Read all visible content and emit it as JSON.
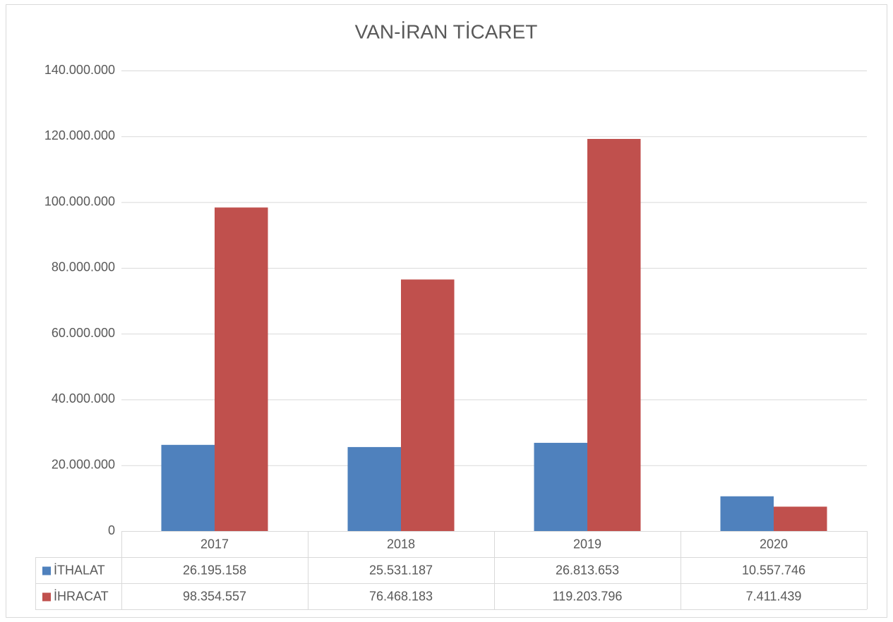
{
  "chart_data": {
    "type": "bar",
    "title": "VAN-İRAN TİCARET",
    "categories": [
      "2017",
      "2018",
      "2019",
      "2020"
    ],
    "series": [
      {
        "name": "İTHALAT",
        "color": "#4f81bd",
        "values": [
          26195158,
          25531187,
          26813653,
          10557746
        ],
        "value_labels": [
          "26.195.158",
          "25.531.187",
          "26.813.653",
          "10.557.746"
        ]
      },
      {
        "name": "İHRACAT",
        "color": "#c0504d",
        "values": [
          98354557,
          76468183,
          119203796,
          7411439
        ],
        "value_labels": [
          "98.354.557",
          "76.468.183",
          "119.203.796",
          "7.411.439"
        ]
      }
    ],
    "ylim": [
      0,
      140000000
    ],
    "yticks": [
      0,
      {
        "value": 20000000,
        "label": "20.000.000"
      },
      {
        "value": 40000000,
        "label": "40.000.000"
      },
      {
        "value": 60000000,
        "label": "60.000.000"
      },
      {
        "value": 80000000,
        "label": "80.000.000"
      },
      {
        "value": 100000000,
        "label": "100.000.000"
      },
      {
        "value": 120000000,
        "label": "120.000.000"
      },
      {
        "value": 140000000,
        "label": "140.000.000"
      }
    ],
    "grid": true,
    "data_table": true
  }
}
